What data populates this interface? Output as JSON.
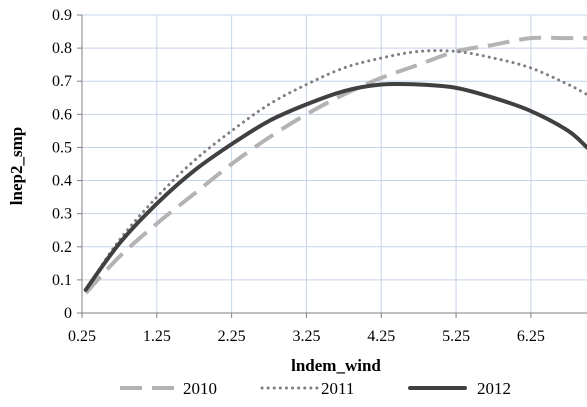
{
  "chart_data": {
    "type": "line",
    "title": "",
    "xlabel": "lndem_wind",
    "ylabel": "lnep2_smp",
    "xlim": [
      0.25,
      7.0
    ],
    "ylim": [
      0,
      0.9
    ],
    "xticks": [
      "0.25",
      "1.25",
      "2.25",
      "3.25",
      "4.25",
      "5.25",
      "6.25"
    ],
    "yticks": [
      "0",
      "0.1",
      "0.2",
      "0.3",
      "0.4",
      "0.5",
      "0.6",
      "0.7",
      "0.8",
      "0.9"
    ],
    "grid": true,
    "legend_position": "bottom",
    "series": [
      {
        "name": "2010",
        "color": "#b3b3b3",
        "style": "dashed",
        "x": [
          0.3,
          0.75,
          1.25,
          1.75,
          2.25,
          2.75,
          3.25,
          3.75,
          4.25,
          4.75,
          5.25,
          5.75,
          6.25,
          6.75,
          7.0
        ],
        "y": [
          0.06,
          0.17,
          0.27,
          0.36,
          0.45,
          0.53,
          0.6,
          0.66,
          0.71,
          0.75,
          0.79,
          0.81,
          0.83,
          0.83,
          0.83
        ]
      },
      {
        "name": "2011",
        "color": "#7f7f7f",
        "style": "dotted",
        "x": [
          0.3,
          0.75,
          1.25,
          1.75,
          2.25,
          2.75,
          3.25,
          3.75,
          4.25,
          4.75,
          5.25,
          5.75,
          6.25,
          6.75,
          7.0
        ],
        "y": [
          0.07,
          0.22,
          0.35,
          0.46,
          0.55,
          0.63,
          0.69,
          0.74,
          0.77,
          0.79,
          0.79,
          0.77,
          0.74,
          0.69,
          0.66
        ]
      },
      {
        "name": "2012",
        "color": "#404040",
        "style": "solid",
        "x": [
          0.3,
          0.75,
          1.25,
          1.75,
          2.25,
          2.75,
          3.25,
          3.75,
          4.25,
          4.75,
          5.25,
          5.75,
          6.25,
          6.75,
          7.0
        ],
        "y": [
          0.07,
          0.21,
          0.33,
          0.43,
          0.51,
          0.58,
          0.63,
          0.67,
          0.69,
          0.69,
          0.68,
          0.65,
          0.61,
          0.55,
          0.5
        ]
      }
    ]
  }
}
